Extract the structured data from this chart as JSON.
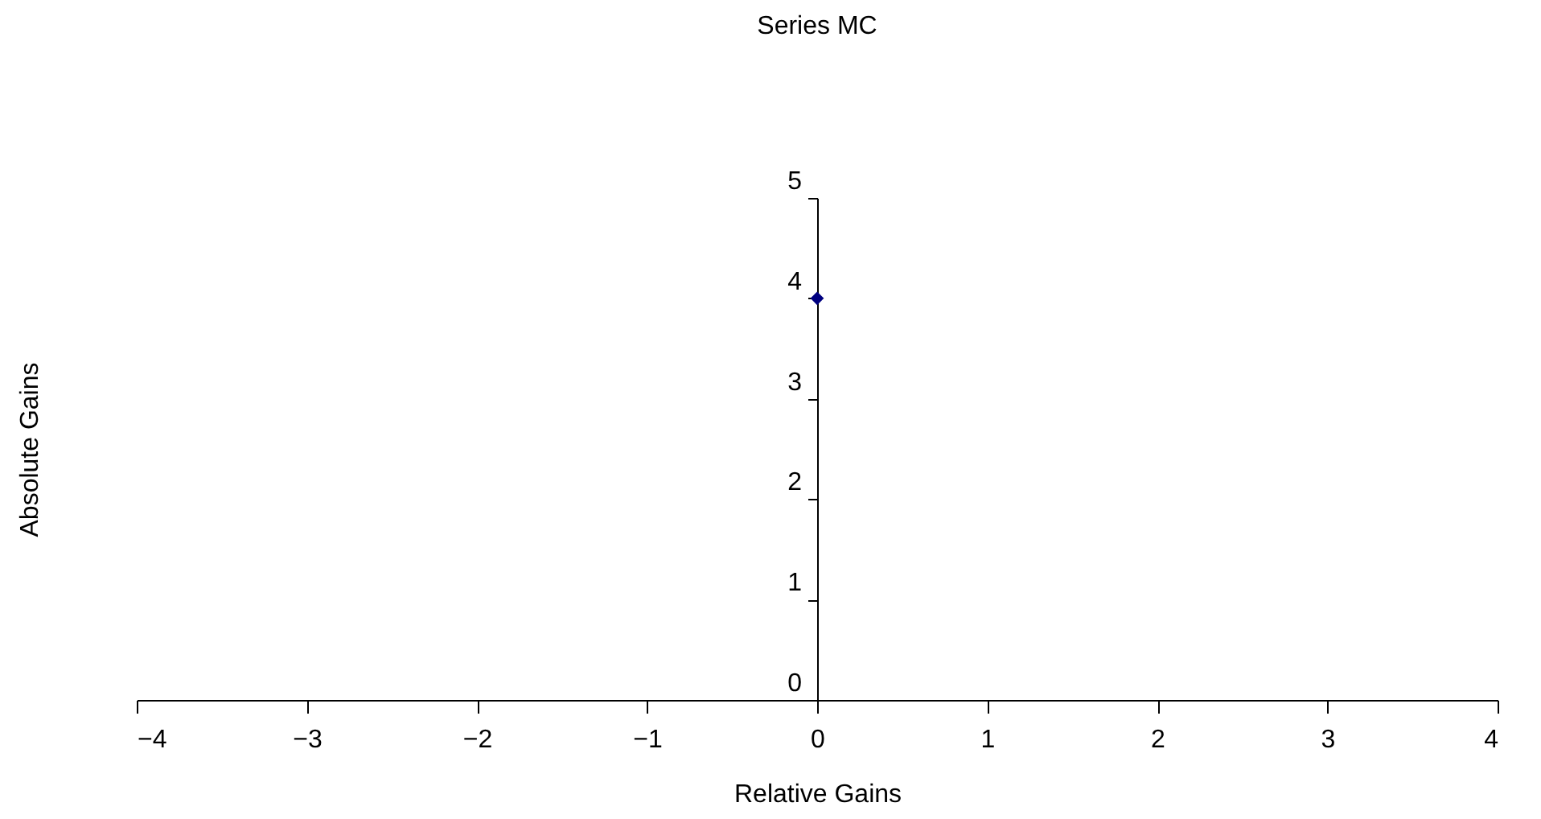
{
  "chart_data": {
    "type": "scatter",
    "title": "Series MC",
    "xlabel": "Relative Gains",
    "ylabel": "Absolute Gains",
    "x": [
      0
    ],
    "series": [
      {
        "color": "#000080",
        "values": [
          4
        ]
      }
    ],
    "marker": "diamond",
    "xlim": [
      -4,
      4
    ],
    "ylim": [
      0,
      5
    ],
    "xticks": [
      -4,
      -3,
      -2,
      -1,
      0,
      1,
      2,
      3,
      4
    ],
    "yticks": [
      0,
      1,
      2,
      3,
      4,
      5
    ],
    "grid": false
  }
}
